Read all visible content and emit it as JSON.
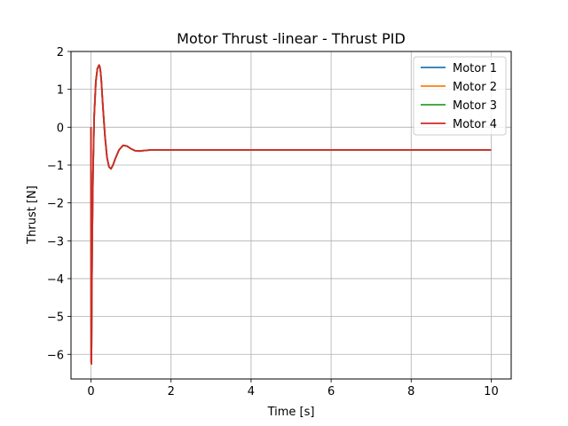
{
  "chart_data": {
    "type": "line",
    "title": "Motor Thrust -linear - Thrust PID",
    "xlabel": "Time [s]",
    "ylabel": "Thrust [N]",
    "xlim": [
      -0.5,
      10.5
    ],
    "ylim": [
      -6.65,
      2.0
    ],
    "xticks": [
      0,
      2,
      4,
      6,
      8,
      10
    ],
    "yticks": [
      -6,
      -5,
      -4,
      -3,
      -2,
      -1,
      0,
      1,
      2
    ],
    "grid": true,
    "legend_position": "top-right",
    "x": [
      0.0,
      0.005,
      0.01,
      0.015,
      0.02,
      0.03,
      0.05,
      0.08,
      0.12,
      0.16,
      0.2,
      0.22,
      0.24,
      0.26,
      0.3,
      0.35,
      0.4,
      0.45,
      0.5,
      0.55,
      0.6,
      0.7,
      0.8,
      0.9,
      1.0,
      1.1,
      1.2,
      1.3,
      1.4,
      1.5,
      2.0,
      3.0,
      4.0,
      5.0,
      6.0,
      7.0,
      8.0,
      9.0,
      10.0
    ],
    "series": [
      {
        "name": "Motor 1",
        "color": "#1f77b4",
        "values": [
          0.0,
          -6.2,
          -6.25,
          -5.5,
          -4.5,
          -3.0,
          -1.2,
          0.3,
          1.2,
          1.55,
          1.64,
          1.6,
          1.45,
          1.2,
          0.5,
          -0.25,
          -0.8,
          -1.05,
          -1.1,
          -1.0,
          -0.85,
          -0.6,
          -0.48,
          -0.5,
          -0.57,
          -0.62,
          -0.63,
          -0.62,
          -0.61,
          -0.6,
          -0.6,
          -0.6,
          -0.6,
          -0.6,
          -0.6,
          -0.6,
          -0.6,
          -0.6,
          -0.6
        ]
      },
      {
        "name": "Motor 2",
        "color": "#ff7f0e",
        "values": [
          0.0,
          -6.2,
          -6.25,
          -5.5,
          -4.5,
          -3.0,
          -1.2,
          0.3,
          1.2,
          1.55,
          1.64,
          1.6,
          1.45,
          1.2,
          0.5,
          -0.25,
          -0.8,
          -1.05,
          -1.1,
          -1.0,
          -0.85,
          -0.6,
          -0.48,
          -0.5,
          -0.57,
          -0.62,
          -0.63,
          -0.62,
          -0.61,
          -0.6,
          -0.6,
          -0.6,
          -0.6,
          -0.6,
          -0.6,
          -0.6,
          -0.6,
          -0.6,
          -0.6
        ]
      },
      {
        "name": "Motor 3",
        "color": "#2ca02c",
        "values": [
          0.0,
          -6.2,
          -6.25,
          -5.5,
          -4.5,
          -3.0,
          -1.2,
          0.3,
          1.2,
          1.55,
          1.64,
          1.6,
          1.45,
          1.2,
          0.5,
          -0.25,
          -0.8,
          -1.05,
          -1.1,
          -1.0,
          -0.85,
          -0.6,
          -0.48,
          -0.5,
          -0.57,
          -0.62,
          -0.63,
          -0.62,
          -0.61,
          -0.6,
          -0.6,
          -0.6,
          -0.6,
          -0.6,
          -0.6,
          -0.6,
          -0.6,
          -0.6,
          -0.6
        ]
      },
      {
        "name": "Motor 4",
        "color": "#d62728",
        "values": [
          0.0,
          -6.2,
          -6.25,
          -5.5,
          -4.5,
          -3.0,
          -1.2,
          0.3,
          1.2,
          1.55,
          1.64,
          1.6,
          1.45,
          1.2,
          0.5,
          -0.25,
          -0.8,
          -1.05,
          -1.1,
          -1.0,
          -0.85,
          -0.6,
          -0.48,
          -0.5,
          -0.57,
          -0.62,
          -0.63,
          -0.62,
          -0.61,
          -0.6,
          -0.6,
          -0.6,
          -0.6,
          -0.6,
          -0.6,
          -0.6,
          -0.6,
          -0.6,
          -0.6
        ]
      }
    ]
  }
}
